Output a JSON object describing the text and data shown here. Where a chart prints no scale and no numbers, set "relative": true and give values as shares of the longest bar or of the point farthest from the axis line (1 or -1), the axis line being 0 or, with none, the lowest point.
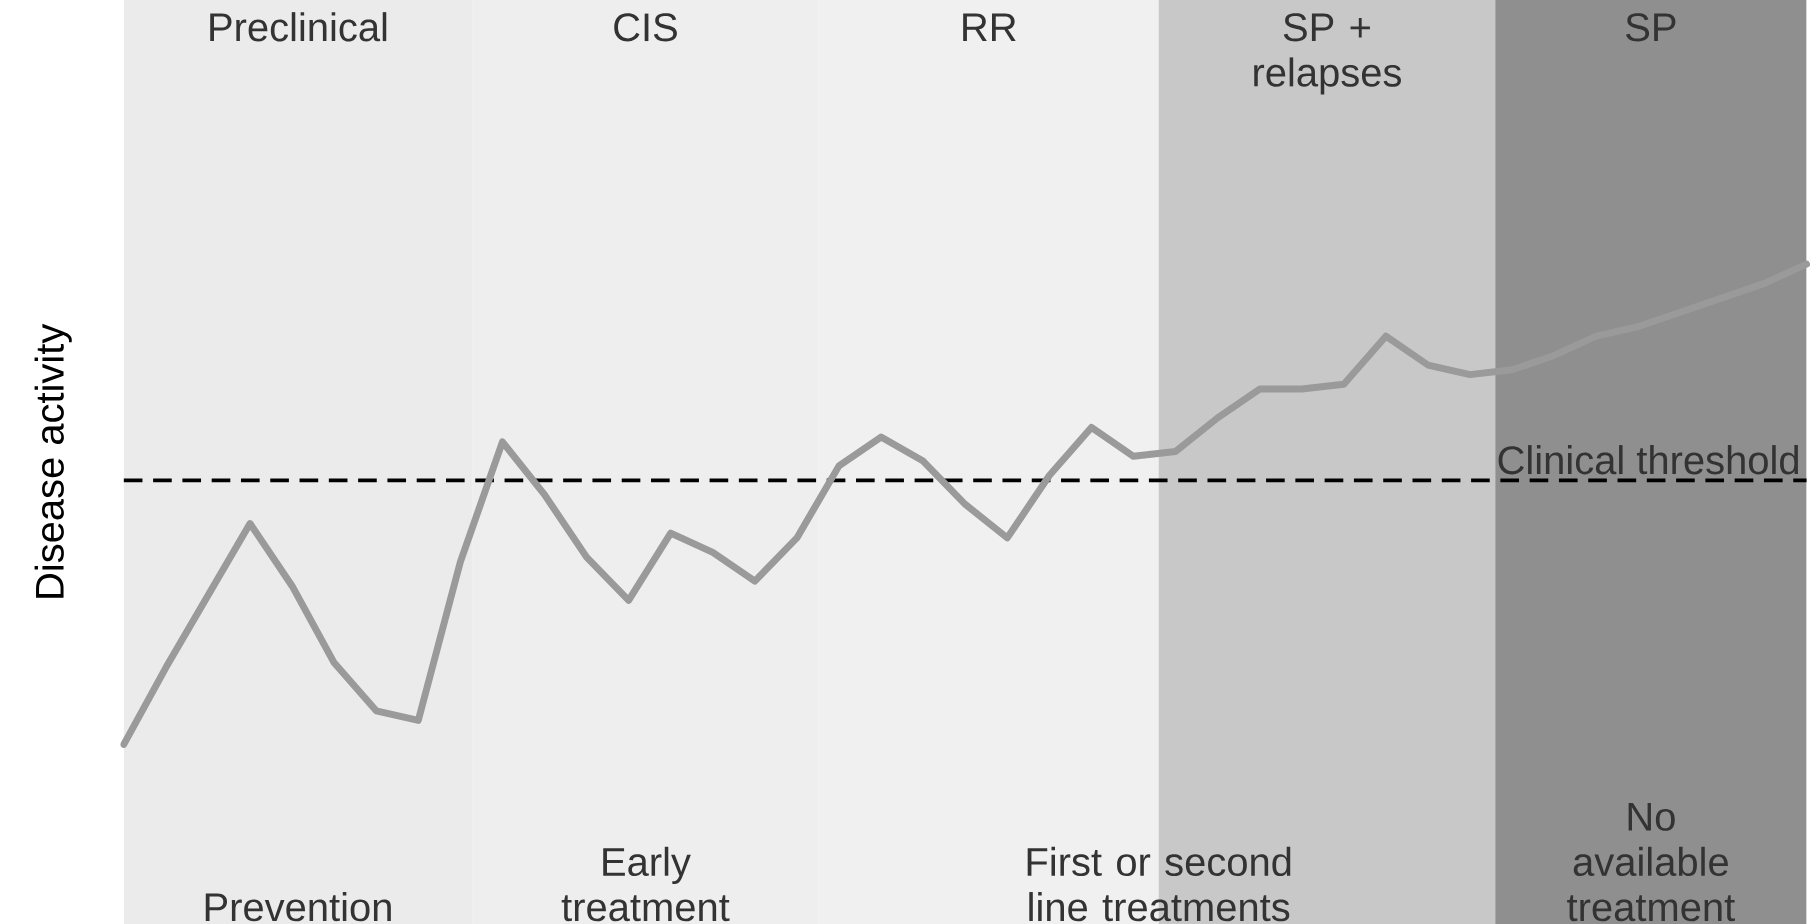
{
  "chart_data": {
    "type": "line",
    "relative": true,
    "ylabel": "Disease activity",
    "tick_labels": false,
    "marker": "none",
    "line_style": "solid",
    "categories": [
      null,
      null,
      null,
      null,
      null,
      null,
      null,
      null,
      null,
      null,
      null,
      null,
      null,
      null,
      null,
      null,
      null,
      null,
      null,
      null,
      null,
      null,
      null,
      null,
      null,
      null,
      null,
      null,
      null,
      null,
      null,
      null,
      null,
      null,
      null,
      null,
      null,
      null,
      null,
      null,
      null
    ],
    "series": [
      {
        "color": "#9a9a9a",
        "values": [
          0,
          0.16,
          0.31,
          0.46,
          0.33,
          0.17,
          0.07,
          0.05,
          0.38,
          0.63,
          0.52,
          0.39,
          0.3,
          0.44,
          0.4,
          0.34,
          0.43,
          0.58,
          0.64,
          0.59,
          0.5,
          0.43,
          0.56,
          0.66,
          0.6,
          0.61,
          0.68,
          0.74,
          0.74,
          0.75,
          0.85,
          0.79,
          0.77,
          0.78,
          0.81,
          0.85,
          0.87,
          0.9,
          0.93,
          0.96,
          1
        ]
      }
    ],
    "ref_lines": [
      {
        "axis": "y",
        "value": 0.55,
        "label": "Clinical threshold",
        "color": "#000000",
        "line_style": "dashed"
      }
    ],
    "annotations": [
      "Preclinical",
      "CIS",
      "RR",
      "SP + relapses",
      "SP",
      "Prevention",
      "Early treatment",
      "First or second line treatments",
      "No available treatment"
    ]
  }
}
